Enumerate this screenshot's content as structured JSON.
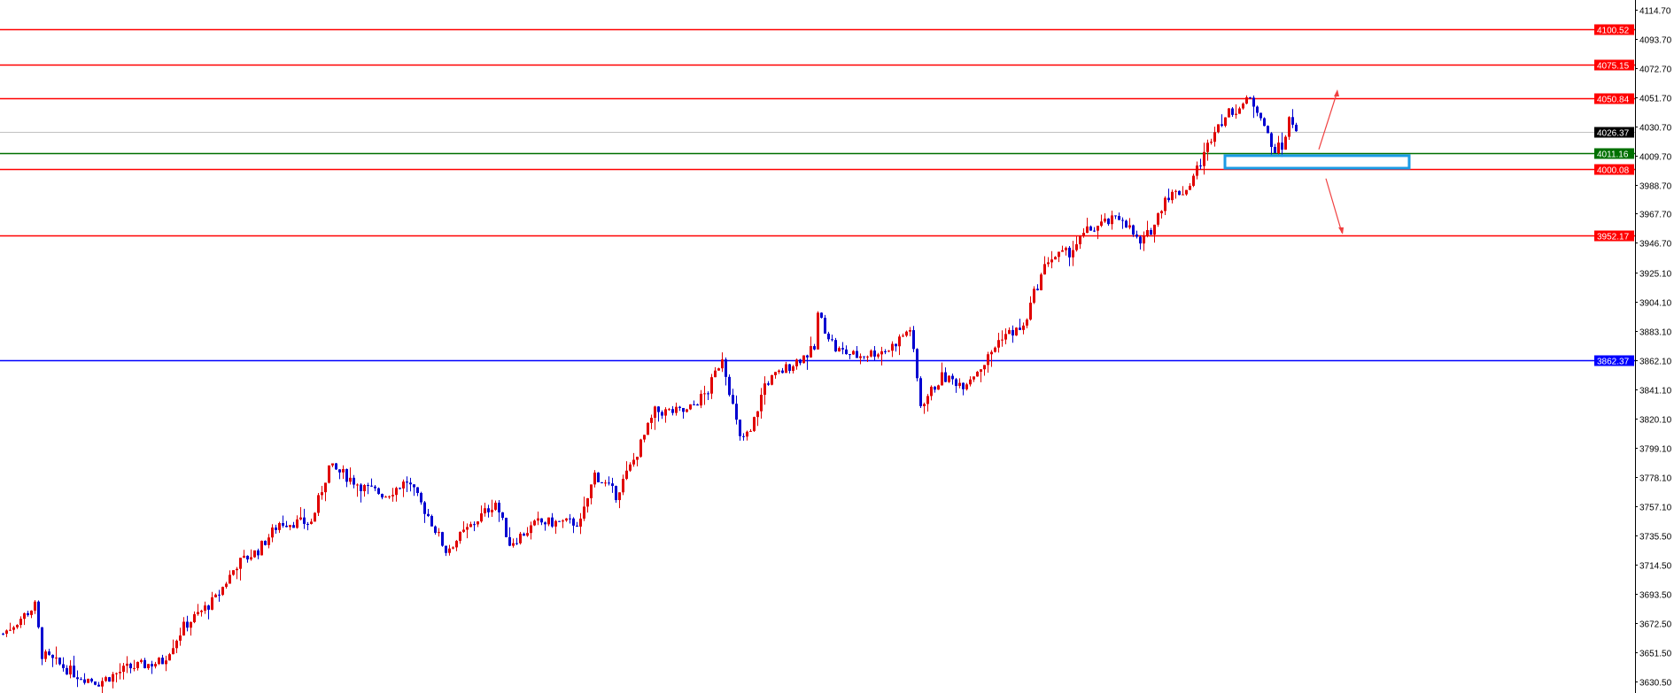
{
  "chart_data": {
    "type": "candlestick",
    "title": "",
    "xlabel": "",
    "ylabel": "",
    "ylim": [
      3626,
      4121
    ],
    "grid": false,
    "y_ticks": [
      "4114.70",
      "4093.70",
      "4072.70",
      "4051.70",
      "4030.70",
      "4009.70",
      "3988.70",
      "3967.70",
      "3946.70",
      "3925.10",
      "3904.10",
      "3883.10",
      "3862.10",
      "3841.10",
      "3820.10",
      "3799.10",
      "3778.10",
      "3757.10",
      "3735.50",
      "3714.50",
      "3693.50",
      "3672.50",
      "3651.50",
      "3630.50"
    ],
    "up_color": "#e00000",
    "down_color": "#0000d0",
    "close_path_by_bar": [
      [
        0,
        3665
      ],
      [
        9,
        3685
      ],
      [
        11,
        3650
      ],
      [
        21,
        3635
      ],
      [
        27,
        3630
      ],
      [
        35,
        3640
      ],
      [
        45,
        3645
      ],
      [
        51,
        3670
      ],
      [
        60,
        3690
      ],
      [
        66,
        3715
      ],
      [
        72,
        3725
      ],
      [
        78,
        3745
      ],
      [
        87,
        3745
      ],
      [
        92,
        3785
      ],
      [
        96,
        3780
      ],
      [
        102,
        3770
      ],
      [
        108,
        3765
      ],
      [
        114,
        3775
      ],
      [
        120,
        3750
      ],
      [
        125,
        3725
      ],
      [
        133,
        3745
      ],
      [
        139,
        3760
      ],
      [
        143,
        3730
      ],
      [
        151,
        3745
      ],
      [
        163,
        3745
      ],
      [
        167,
        3780
      ],
      [
        173,
        3765
      ],
      [
        178,
        3790
      ],
      [
        184,
        3825
      ],
      [
        193,
        3825
      ],
      [
        199,
        3840
      ],
      [
        203,
        3865
      ],
      [
        208,
        3805
      ],
      [
        211,
        3810
      ],
      [
        215,
        3845
      ],
      [
        223,
        3860
      ],
      [
        229,
        3870
      ],
      [
        230,
        3895
      ],
      [
        235,
        3870
      ],
      [
        241,
        3865
      ],
      [
        250,
        3870
      ],
      [
        256,
        3885
      ],
      [
        259,
        3830
      ],
      [
        265,
        3850
      ],
      [
        271,
        3845
      ],
      [
        277,
        3860
      ],
      [
        282,
        3880
      ],
      [
        288,
        3885
      ],
      [
        291,
        3910
      ],
      [
        295,
        3935
      ],
      [
        301,
        3940
      ],
      [
        306,
        3955
      ],
      [
        310,
        3960
      ],
      [
        316,
        3965
      ],
      [
        321,
        3945
      ],
      [
        325,
        3960
      ],
      [
        328,
        3980
      ],
      [
        334,
        3985
      ],
      [
        339,
        4010
      ],
      [
        342,
        4030
      ],
      [
        346,
        4040
      ],
      [
        352,
        4050
      ],
      [
        355,
        4040
      ],
      [
        358,
        4015
      ],
      [
        361,
        4015
      ],
      [
        363,
        4035
      ],
      [
        365,
        4030
      ]
    ],
    "horizontal_levels": [
      {
        "price": 4100.52,
        "label": "4100.52",
        "color": "#ff0000"
      },
      {
        "price": 4075.15,
        "label": "4075.15",
        "color": "#ff0000"
      },
      {
        "price": 4050.84,
        "label": "4050.84",
        "color": "#ff0000"
      },
      {
        "price": 4026.37,
        "label": "4026.37",
        "color": "#c0c0c0",
        "label_bg": "#000000"
      },
      {
        "price": 4011.16,
        "label": "4011.16",
        "color": "#007000"
      },
      {
        "price": 4000.08,
        "label": "4000.08",
        "color": "#ff0000"
      },
      {
        "price": 3952.17,
        "label": "3952.17",
        "color": "#ff0000"
      },
      {
        "price": 3862.37,
        "label": "3862.37",
        "color": "#0000ff"
      }
    ],
    "zone": {
      "from": 4000.5,
      "to": 4009.5,
      "color": "#1a9be6"
    },
    "arrows": [
      {
        "direction": "up",
        "from_price": 4014,
        "to_price": 4056,
        "color": "#f04040"
      },
      {
        "direction": "down",
        "from_price": 3993,
        "to_price": 3954,
        "color": "#f04040"
      }
    ]
  }
}
